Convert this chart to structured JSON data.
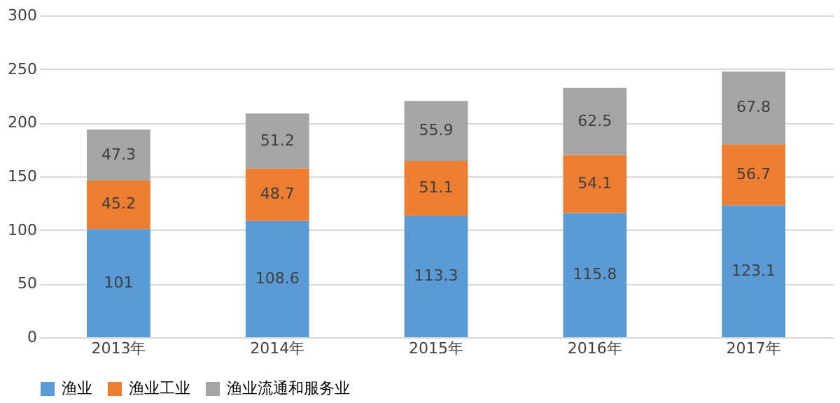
{
  "chart_data": {
    "type": "bar",
    "stacked": true,
    "categories": [
      "2013年",
      "2014年",
      "2015年",
      "2016年",
      "2017年"
    ],
    "series": [
      {
        "name": "渔业",
        "color": "#5b9bd5",
        "values": [
          101,
          108.6,
          113.3,
          115.8,
          123.1
        ]
      },
      {
        "name": "渔业工业",
        "color": "#ed7d31",
        "values": [
          45.2,
          48.7,
          51.1,
          54.1,
          56.7
        ]
      },
      {
        "name": "渔业流通和服务业",
        "color": "#a5a5a5",
        "values": [
          47.3,
          51.2,
          55.9,
          62.5,
          67.8
        ]
      }
    ],
    "ylim": [
      0,
      300
    ],
    "yticks": [
      0,
      50,
      100,
      150,
      200,
      250,
      300
    ],
    "grid": "y",
    "legend": "bottom",
    "data_labels": true
  }
}
